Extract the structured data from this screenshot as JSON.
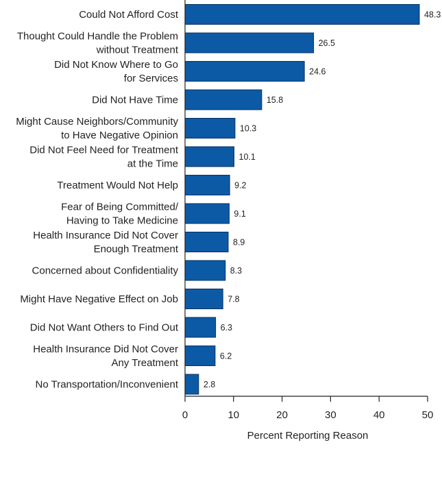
{
  "chart_data": {
    "type": "bar",
    "orientation": "horizontal",
    "categories": [
      [
        "Could Not Afford Cost"
      ],
      [
        "Thought Could Handle the Problem",
        "without Treatment"
      ],
      [
        "Did Not Know Where to Go",
        "for Services"
      ],
      [
        "Did Not Have Time"
      ],
      [
        "Might Cause Neighbors/Community",
        "to Have Negative Opinion"
      ],
      [
        "Did Not Feel Need for Treatment",
        "at the Time"
      ],
      [
        "Treatment Would Not Help"
      ],
      [
        "Fear of Being Committed/",
        "Having to Take Medicine"
      ],
      [
        "Health Insurance Did Not Cover",
        "Enough Treatment"
      ],
      [
        "Concerned about Confidentiality"
      ],
      [
        "Might Have Negative Effect on Job"
      ],
      [
        "Did Not Want Others to Find Out"
      ],
      [
        "Health Insurance Did Not Cover",
        "Any Treatment"
      ],
      [
        "No Transportation/Inconvenient"
      ]
    ],
    "values": [
      48.3,
      26.5,
      24.6,
      15.8,
      10.3,
      10.1,
      9.2,
      9.1,
      8.9,
      8.3,
      7.8,
      6.3,
      6.2,
      2.8
    ],
    "value_labels": [
      "48.3",
      "26.5",
      "24.6",
      "15.8",
      "10.3",
      "10.1",
      "9.2",
      "9.1",
      "8.9",
      "8.3",
      "7.8",
      "6.3",
      "6.2",
      "2.8"
    ],
    "xlabel": "Percent Reporting Reason",
    "xlim": [
      0,
      50
    ],
    "xticks": [
      0,
      10,
      20,
      30,
      40,
      50
    ],
    "xtick_labels": [
      "0",
      "10",
      "20",
      "30",
      "40",
      "50"
    ],
    "grid": false,
    "bar_color": "#0c5aa6"
  }
}
